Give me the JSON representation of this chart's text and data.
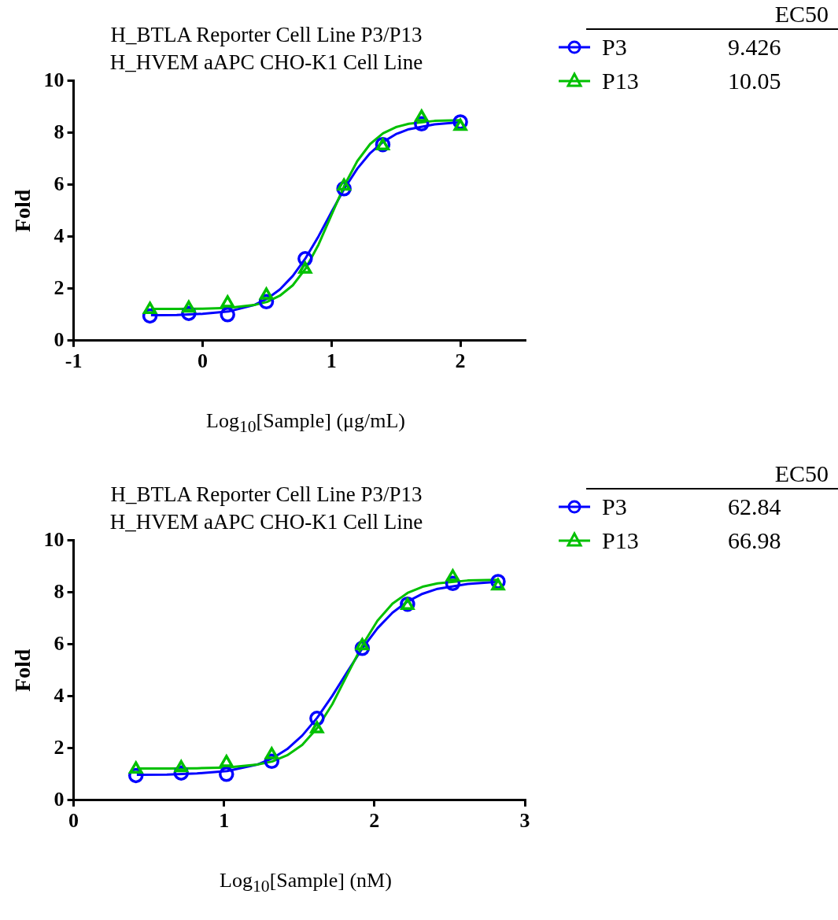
{
  "chart_data": [
    {
      "type": "scatter",
      "title": "H_BTLA Reporter Cell Line P3/P13",
      "subtitle": "H_HVEM aAPC CHO-K1 Cell Line",
      "xlabel": "Log$_{10}$[Sample] (μg/mL)",
      "ylabel": "Fold",
      "legend_title": "EC50",
      "legend": "top right",
      "annotations": [
        "9.426",
        "10.05"
      ],
      "xlim": [
        -1,
        2.5
      ],
      "xticks": [
        -1,
        0,
        1,
        2
      ],
      "ylim": [
        0,
        10
      ],
      "yticks": [
        0,
        2,
        4,
        6,
        8,
        10
      ],
      "series": [
        {
          "name": "P3",
          "marker": "circle",
          "color": "#0000ff",
          "x": [
            -0.408,
            -0.107,
            0.194,
            0.495,
            0.796,
            1.097,
            1.398,
            1.699,
            2.0
          ],
          "values": [
            0.95,
            1.05,
            1.0,
            1.5,
            3.15,
            5.85,
            7.55,
            8.35,
            8.42
          ]
        },
        {
          "name": "P13",
          "marker": "triangle",
          "color": "#00c000",
          "x": [
            -0.408,
            -0.107,
            0.194,
            0.495,
            0.796,
            1.097,
            1.398,
            1.699,
            2.0
          ],
          "values": [
            1.2,
            1.25,
            1.45,
            1.75,
            2.75,
            5.95,
            7.5,
            8.6,
            8.25
          ]
        },
        {
          "type": "line",
          "marker": "none",
          "color": "#00c000",
          "x": [
            -0.4,
            -0.2,
            0,
            0.2,
            0.4,
            0.5,
            0.6,
            0.7,
            0.8,
            0.9,
            1.0,
            1.1,
            1.2,
            1.3,
            1.4,
            1.5,
            1.6,
            1.8,
            2.0
          ],
          "values": [
            1.22,
            1.22,
            1.23,
            1.26,
            1.37,
            1.49,
            1.73,
            2.13,
            2.78,
            3.7,
            4.84,
            5.97,
            6.91,
            7.57,
            7.98,
            8.22,
            8.35,
            8.46,
            8.49
          ]
        },
        {
          "type": "line",
          "marker": "none",
          "color": "#0000ff",
          "x": [
            -0.4,
            -0.2,
            0,
            0.2,
            0.4,
            0.5,
            0.6,
            0.7,
            0.8,
            0.9,
            1.0,
            1.1,
            1.2,
            1.3,
            1.4,
            1.5,
            1.6,
            1.8,
            2.0
          ],
          "values": [
            0.98,
            0.99,
            1.03,
            1.12,
            1.37,
            1.61,
            1.97,
            2.49,
            3.18,
            4.02,
            4.95,
            5.85,
            6.62,
            7.22,
            7.65,
            7.95,
            8.14,
            8.33,
            8.41
          ]
        }
      ]
    },
    {
      "type": "scatter",
      "title": "H_BTLA Reporter Cell Line P3/P13",
      "subtitle": "H_HVEM aAPC CHO-K1 Cell Line",
      "xlabel": "Log$_{10}$[Sample] (nM)",
      "ylabel": "Fold",
      "legend_title": "EC50",
      "legend": "top right",
      "annotations": [
        "62.84",
        "66.98"
      ],
      "xlim": [
        0,
        3
      ],
      "xticks": [
        0,
        1,
        2,
        3
      ],
      "ylim": [
        0,
        10
      ],
      "yticks": [
        0,
        2,
        4,
        6,
        8,
        10
      ],
      "series": [
        {
          "name": "P3",
          "marker": "circle",
          "color": "#0000ff",
          "x": [
            0.414,
            0.715,
            1.016,
            1.317,
            1.618,
            1.919,
            2.22,
            2.521,
            2.822
          ],
          "values": [
            0.95,
            1.05,
            1.0,
            1.5,
            3.15,
            5.85,
            7.55,
            8.35,
            8.42
          ]
        },
        {
          "name": "P13",
          "marker": "triangle",
          "color": "#00c000",
          "x": [
            0.414,
            0.715,
            1.016,
            1.317,
            1.618,
            1.919,
            2.22,
            2.521,
            2.822
          ],
          "values": [
            1.2,
            1.25,
            1.45,
            1.75,
            2.75,
            5.95,
            7.5,
            8.6,
            8.25
          ]
        },
        {
          "type": "line",
          "marker": "none",
          "color": "#00c000",
          "x": [
            0.42,
            0.62,
            0.82,
            1.02,
            1.22,
            1.32,
            1.42,
            1.52,
            1.62,
            1.72,
            1.82,
            1.92,
            2.02,
            2.12,
            2.22,
            2.32,
            2.42,
            2.62,
            2.82
          ],
          "values": [
            1.22,
            1.22,
            1.23,
            1.26,
            1.37,
            1.49,
            1.73,
            2.13,
            2.78,
            3.7,
            4.84,
            5.97,
            6.91,
            7.57,
            7.98,
            8.22,
            8.35,
            8.46,
            8.49
          ]
        },
        {
          "type": "line",
          "marker": "none",
          "color": "#0000ff",
          "x": [
            0.42,
            0.62,
            0.82,
            1.02,
            1.22,
            1.32,
            1.42,
            1.52,
            1.62,
            1.72,
            1.82,
            1.92,
            2.02,
            2.12,
            2.22,
            2.32,
            2.42,
            2.62,
            2.82
          ],
          "values": [
            0.98,
            0.99,
            1.03,
            1.12,
            1.37,
            1.61,
            1.97,
            2.49,
            3.18,
            4.02,
            4.95,
            5.85,
            6.62,
            7.22,
            7.65,
            7.95,
            8.14,
            8.33,
            8.41
          ]
        }
      ]
    }
  ]
}
